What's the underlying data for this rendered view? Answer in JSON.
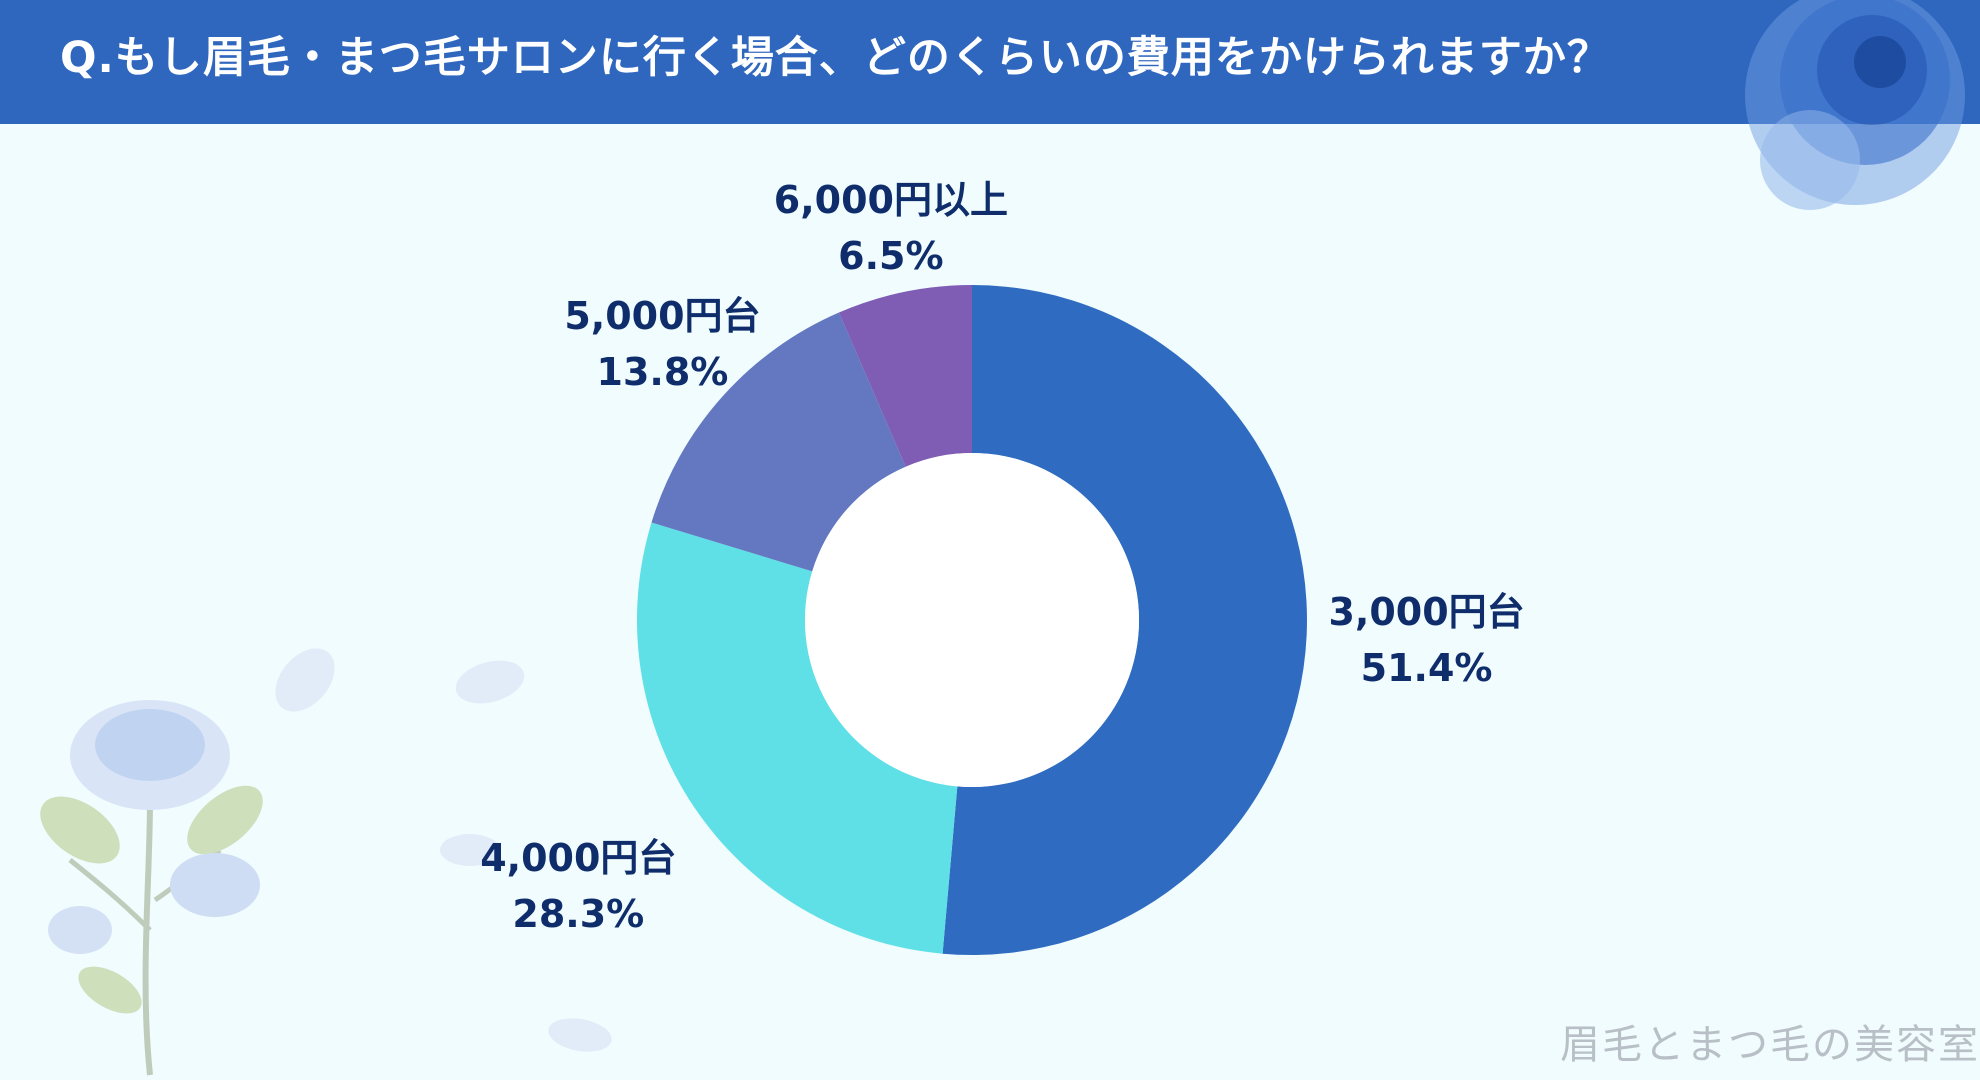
{
  "header": {
    "title": "Q.もし眉毛・まつ毛サロンに行く場合、どのくらいの費用をかけられますか？"
  },
  "chart_data": {
    "type": "pie",
    "categories": [
      "3,000円台",
      "4,000円台",
      "5,000円台",
      "6,000円以上"
    ],
    "values": [
      51.4,
      28.3,
      13.8,
      6.5
    ],
    "value_labels": [
      "51.4%",
      "28.3%",
      "13.8%",
      "6.5%"
    ],
    "colors": [
      "#2f6cc1",
      "#5fe0e6",
      "#6378c1",
      "#7f5db5"
    ],
    "donut": true,
    "start": "12 o'clock, clockwise",
    "title": "",
    "legend": "none"
  },
  "watermark": "眉毛とまつ毛の美容室",
  "theme": {
    "header_bg": "#2f67bf",
    "page_bg": "#f0fcfe",
    "label_color": "#0f2d6b"
  }
}
